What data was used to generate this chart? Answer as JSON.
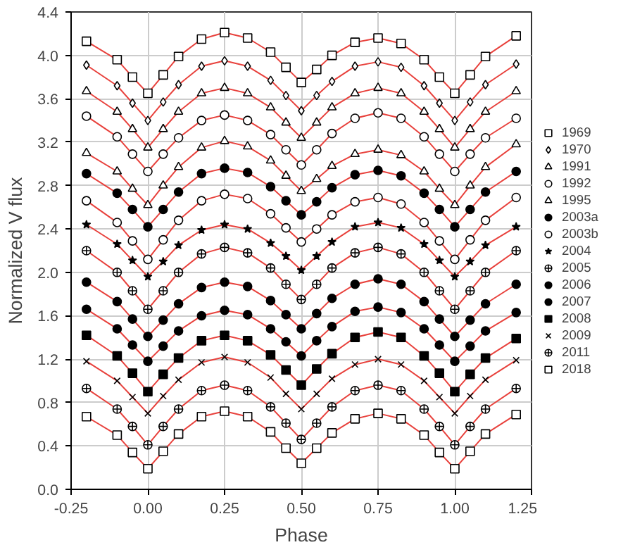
{
  "chart_data": {
    "type": "scatter",
    "xlabel": "Phase",
    "ylabel": "Normalized V flux",
    "x": [
      -0.2,
      -0.1,
      -0.05,
      0,
      0.05,
      0.1,
      0.175,
      0.25,
      0.325,
      0.4,
      0.45,
      0.5,
      0.55,
      0.6,
      0.675,
      0.75,
      0.825,
      0.9,
      0.95,
      1.0,
      1.05,
      1.1,
      1.2
    ],
    "xlim": [
      -0.25,
      1.25
    ],
    "xticks": [
      {
        "value": -0.25,
        "label": "-0.25"
      },
      {
        "value": 0,
        "label": "0.00"
      },
      {
        "value": 0.25,
        "label": "0.25"
      },
      {
        "value": 0.5,
        "label": "0.50"
      },
      {
        "value": 0.75,
        "label": "0.75"
      },
      {
        "value": 1.0,
        "label": "1.00"
      },
      {
        "value": 1.25,
        "label": "1.25"
      }
    ],
    "ylim": [
      0,
      4.4
    ],
    "yticks": [
      {
        "value": 0,
        "label": "0.0"
      },
      {
        "value": 0.4,
        "label": "0.4"
      },
      {
        "value": 0.8,
        "label": "0.8"
      },
      {
        "value": 1.2,
        "label": "1.2"
      },
      {
        "value": 1.6,
        "label": "1.6"
      },
      {
        "value": 2.0,
        "label": "2.0"
      },
      {
        "value": 2.4,
        "label": "2.4"
      },
      {
        "value": 2.8,
        "label": "2.8"
      },
      {
        "value": 3.2,
        "label": "3.2"
      },
      {
        "value": 3.6,
        "label": "3.6"
      },
      {
        "value": 4.0,
        "label": "4.0"
      },
      {
        "value": 4.4,
        "label": "4.4"
      }
    ],
    "grid": true,
    "legend": "right",
    "series": [
      {
        "type": "line",
        "color": "#e8413c",
        "values": [
          4.13,
          3.96,
          3.8,
          3.65,
          3.82,
          3.99,
          4.15,
          4.21,
          4.16,
          4.03,
          3.89,
          3.75,
          3.87,
          4.0,
          4.12,
          4.16,
          4.11,
          3.96,
          3.8,
          3.65,
          3.82,
          3.99,
          4.18
        ]
      },
      {
        "type": "line",
        "color": "#e8413c",
        "values": [
          3.91,
          3.72,
          3.56,
          3.4,
          3.57,
          3.73,
          3.9,
          3.95,
          3.9,
          3.77,
          3.63,
          3.49,
          3.63,
          3.76,
          3.9,
          3.94,
          3.89,
          3.72,
          3.56,
          3.4,
          3.57,
          3.73,
          3.92
        ]
      },
      {
        "type": "line",
        "color": "#e8413c",
        "values": [
          3.67,
          3.48,
          3.32,
          3.15,
          3.32,
          3.48,
          3.65,
          3.7,
          3.65,
          3.52,
          3.38,
          3.24,
          3.38,
          3.52,
          3.65,
          3.7,
          3.65,
          3.48,
          3.32,
          3.15,
          3.32,
          3.48,
          3.67
        ]
      },
      {
        "type": "line",
        "color": "#e8413c",
        "values": [
          3.44,
          3.25,
          3.09,
          2.93,
          3.09,
          3.24,
          3.4,
          3.45,
          3.4,
          3.27,
          3.13,
          2.99,
          3.13,
          3.28,
          3.42,
          3.47,
          3.42,
          3.25,
          3.09,
          2.93,
          3.09,
          3.24,
          3.42
        ]
      },
      {
        "type": "line",
        "color": "#e8413c",
        "values": [
          3.1,
          2.93,
          2.77,
          2.62,
          2.8,
          2.97,
          3.15,
          3.21,
          3.16,
          3.03,
          2.89,
          2.75,
          2.86,
          2.98,
          3.09,
          3.13,
          3.08,
          2.93,
          2.77,
          2.62,
          2.8,
          2.97,
          3.18
        ]
      },
      {
        "type": "line",
        "color": "#e8413c",
        "values": [
          2.91,
          2.73,
          2.58,
          2.42,
          2.58,
          2.74,
          2.91,
          2.96,
          2.92,
          2.79,
          2.66,
          2.53,
          2.65,
          2.78,
          2.9,
          2.94,
          2.89,
          2.73,
          2.58,
          2.42,
          2.58,
          2.74,
          2.93
        ]
      },
      {
        "type": "line",
        "color": "#e8413c",
        "values": [
          2.66,
          2.46,
          2.29,
          2.12,
          2.3,
          2.48,
          2.66,
          2.72,
          2.68,
          2.54,
          2.41,
          2.28,
          2.4,
          2.53,
          2.65,
          2.69,
          2.63,
          2.46,
          2.29,
          2.12,
          2.3,
          2.48,
          2.69
        ]
      },
      {
        "type": "line",
        "color": "#e8413c",
        "values": [
          2.44,
          2.26,
          2.11,
          1.96,
          2.1,
          2.25,
          2.39,
          2.44,
          2.4,
          2.27,
          2.15,
          2.02,
          2.15,
          2.28,
          2.42,
          2.46,
          2.41,
          2.26,
          2.11,
          1.96,
          2.1,
          2.25,
          2.42
        ]
      },
      {
        "type": "line",
        "color": "#e8413c",
        "values": [
          2.2,
          2.0,
          1.83,
          1.66,
          1.83,
          2.0,
          2.17,
          2.23,
          2.18,
          2.04,
          1.89,
          1.75,
          1.89,
          2.04,
          2.18,
          2.23,
          2.17,
          2.0,
          1.83,
          1.66,
          1.83,
          2.0,
          2.2
        ]
      },
      {
        "type": "line",
        "color": "#e8413c",
        "values": [
          1.91,
          1.73,
          1.57,
          1.41,
          1.56,
          1.71,
          1.86,
          1.91,
          1.87,
          1.74,
          1.61,
          1.48,
          1.62,
          1.76,
          1.89,
          1.94,
          1.89,
          1.73,
          1.57,
          1.41,
          1.56,
          1.71,
          1.89
        ]
      },
      {
        "type": "line",
        "color": "#e8413c",
        "values": [
          1.66,
          1.48,
          1.33,
          1.18,
          1.32,
          1.46,
          1.6,
          1.65,
          1.61,
          1.48,
          1.36,
          1.23,
          1.37,
          1.5,
          1.64,
          1.68,
          1.63,
          1.48,
          1.33,
          1.18,
          1.32,
          1.46,
          1.63
        ]
      },
      {
        "type": "line",
        "color": "#e8413c",
        "values": [
          1.42,
          1.23,
          1.07,
          0.9,
          1.06,
          1.21,
          1.37,
          1.42,
          1.37,
          1.24,
          1.1,
          0.96,
          1.11,
          1.25,
          1.4,
          1.45,
          1.4,
          1.23,
          1.07,
          0.9,
          1.06,
          1.21,
          1.39
        ]
      },
      {
        "type": "line",
        "color": "#e8413c",
        "values": [
          1.18,
          1.0,
          0.85,
          0.7,
          0.86,
          1.01,
          1.17,
          1.22,
          1.17,
          1.03,
          0.88,
          0.74,
          0.88,
          1.02,
          1.15,
          1.2,
          1.15,
          1.0,
          0.85,
          0.7,
          0.86,
          1.01,
          1.19
        ]
      },
      {
        "type": "line",
        "color": "#e8413c",
        "values": [
          0.93,
          0.74,
          0.58,
          0.41,
          0.58,
          0.74,
          0.91,
          0.96,
          0.91,
          0.76,
          0.61,
          0.46,
          0.61,
          0.76,
          0.91,
          0.96,
          0.91,
          0.74,
          0.58,
          0.41,
          0.58,
          0.74,
          0.93
        ]
      },
      {
        "type": "line",
        "color": "#e8413c",
        "values": [
          0.67,
          0.5,
          0.34,
          0.19,
          0.35,
          0.51,
          0.67,
          0.72,
          0.67,
          0.53,
          0.38,
          0.24,
          0.38,
          0.52,
          0.65,
          0.7,
          0.65,
          0.5,
          0.34,
          0.19,
          0.35,
          0.51,
          0.69
        ]
      },
      {
        "name": "1969",
        "color": "#000000",
        "marker": "square",
        "values": [
          4.13,
          3.96,
          3.8,
          3.65,
          3.82,
          3.99,
          4.15,
          4.21,
          4.16,
          4.03,
          3.89,
          3.75,
          3.87,
          4.0,
          4.12,
          4.16,
          4.11,
          3.96,
          3.8,
          3.65,
          3.82,
          3.99,
          4.18
        ]
      },
      {
        "name": "1970",
        "color": "#000000",
        "marker": "diamond",
        "values": [
          3.91,
          3.72,
          3.56,
          3.4,
          3.57,
          3.73,
          3.9,
          3.95,
          3.9,
          3.77,
          3.63,
          3.49,
          3.63,
          3.76,
          3.9,
          3.94,
          3.89,
          3.72,
          3.56,
          3.4,
          3.57,
          3.73,
          3.92
        ]
      },
      {
        "name": "1991",
        "color": "#000000",
        "marker": "triangle",
        "values": [
          3.67,
          3.48,
          3.32,
          3.15,
          3.32,
          3.48,
          3.65,
          3.7,
          3.65,
          3.52,
          3.38,
          3.24,
          3.38,
          3.52,
          3.65,
          3.7,
          3.65,
          3.48,
          3.32,
          3.15,
          3.32,
          3.48,
          3.67
        ]
      },
      {
        "name": "1992",
        "color": "#000000",
        "marker": "circle",
        "values": [
          3.44,
          3.25,
          3.09,
          2.93,
          3.09,
          3.24,
          3.4,
          3.45,
          3.4,
          3.27,
          3.13,
          2.99,
          3.13,
          3.28,
          3.42,
          3.47,
          3.42,
          3.25,
          3.09,
          2.93,
          3.09,
          3.24,
          3.42
        ]
      },
      {
        "name": "1995",
        "color": "#000000",
        "marker": "triangle",
        "values": [
          3.1,
          2.93,
          2.77,
          2.62,
          2.8,
          2.97,
          3.15,
          3.21,
          3.16,
          3.03,
          2.89,
          2.75,
          2.86,
          2.98,
          3.09,
          3.13,
          3.08,
          2.93,
          2.77,
          2.62,
          2.8,
          2.97,
          3.18
        ]
      },
      {
        "name": "2003a",
        "color": "#000000",
        "marker": "circle_filled",
        "values": [
          2.91,
          2.73,
          2.58,
          2.42,
          2.58,
          2.74,
          2.91,
          2.96,
          2.92,
          2.79,
          2.66,
          2.53,
          2.65,
          2.78,
          2.9,
          2.94,
          2.89,
          2.73,
          2.58,
          2.42,
          2.58,
          2.74,
          2.93
        ]
      },
      {
        "name": "2003b",
        "color": "#000000",
        "marker": "circle",
        "values": [
          2.66,
          2.46,
          2.29,
          2.12,
          2.3,
          2.48,
          2.66,
          2.72,
          2.68,
          2.54,
          2.41,
          2.28,
          2.4,
          2.53,
          2.65,
          2.69,
          2.63,
          2.46,
          2.29,
          2.12,
          2.3,
          2.48,
          2.69
        ]
      },
      {
        "name": "2004",
        "color": "#000000",
        "marker": "star_filled",
        "values": [
          2.44,
          2.26,
          2.11,
          1.96,
          2.1,
          2.25,
          2.39,
          2.44,
          2.4,
          2.27,
          2.15,
          2.02,
          2.15,
          2.28,
          2.42,
          2.46,
          2.41,
          2.26,
          2.11,
          1.96,
          2.1,
          2.25,
          2.42
        ]
      },
      {
        "name": "2005",
        "color": "#000000",
        "marker": "circle_cross",
        "values": [
          2.2,
          2.0,
          1.83,
          1.66,
          1.83,
          2.0,
          2.17,
          2.23,
          2.18,
          2.04,
          1.89,
          1.75,
          1.89,
          2.04,
          2.18,
          2.23,
          2.17,
          2.0,
          1.83,
          1.66,
          1.83,
          2.0,
          2.2
        ]
      },
      {
        "name": "2006",
        "color": "#000000",
        "marker": "circle_filled",
        "values": [
          1.91,
          1.73,
          1.57,
          1.41,
          1.56,
          1.71,
          1.86,
          1.91,
          1.87,
          1.74,
          1.61,
          1.48,
          1.62,
          1.76,
          1.89,
          1.94,
          1.89,
          1.73,
          1.57,
          1.41,
          1.56,
          1.71,
          1.89
        ]
      },
      {
        "name": "2007",
        "color": "#000000",
        "marker": "circle_filled",
        "values": [
          1.66,
          1.48,
          1.33,
          1.18,
          1.32,
          1.46,
          1.6,
          1.65,
          1.61,
          1.48,
          1.36,
          1.23,
          1.37,
          1.5,
          1.64,
          1.68,
          1.63,
          1.48,
          1.33,
          1.18,
          1.32,
          1.46,
          1.63
        ]
      },
      {
        "name": "2008",
        "color": "#000000",
        "marker": "square_filled",
        "values": [
          1.42,
          1.23,
          1.07,
          0.9,
          1.06,
          1.21,
          1.37,
          1.42,
          1.37,
          1.24,
          1.1,
          0.96,
          1.11,
          1.25,
          1.4,
          1.45,
          1.4,
          1.23,
          1.07,
          0.9,
          1.06,
          1.21,
          1.39
        ]
      },
      {
        "name": "2009",
        "color": "#000000",
        "marker": "cross",
        "values": [
          1.18,
          1.0,
          0.85,
          0.7,
          0.86,
          1.01,
          1.17,
          1.22,
          1.17,
          1.03,
          0.88,
          0.74,
          0.88,
          1.02,
          1.15,
          1.2,
          1.15,
          1.0,
          0.85,
          0.7,
          0.86,
          1.01,
          1.19
        ]
      },
      {
        "name": "2011",
        "color": "#000000",
        "marker": "circle_cross",
        "values": [
          0.93,
          0.74,
          0.58,
          0.41,
          0.58,
          0.74,
          0.91,
          0.96,
          0.91,
          0.76,
          0.61,
          0.46,
          0.61,
          0.76,
          0.91,
          0.96,
          0.91,
          0.74,
          0.58,
          0.41,
          0.58,
          0.74,
          0.93
        ]
      },
      {
        "name": "2018",
        "color": "#000000",
        "marker": "square",
        "values": [
          0.67,
          0.5,
          0.34,
          0.19,
          0.35,
          0.51,
          0.67,
          0.72,
          0.67,
          0.53,
          0.38,
          0.24,
          0.38,
          0.52,
          0.65,
          0.7,
          0.65,
          0.5,
          0.34,
          0.19,
          0.35,
          0.51,
          0.69
        ]
      }
    ]
  }
}
